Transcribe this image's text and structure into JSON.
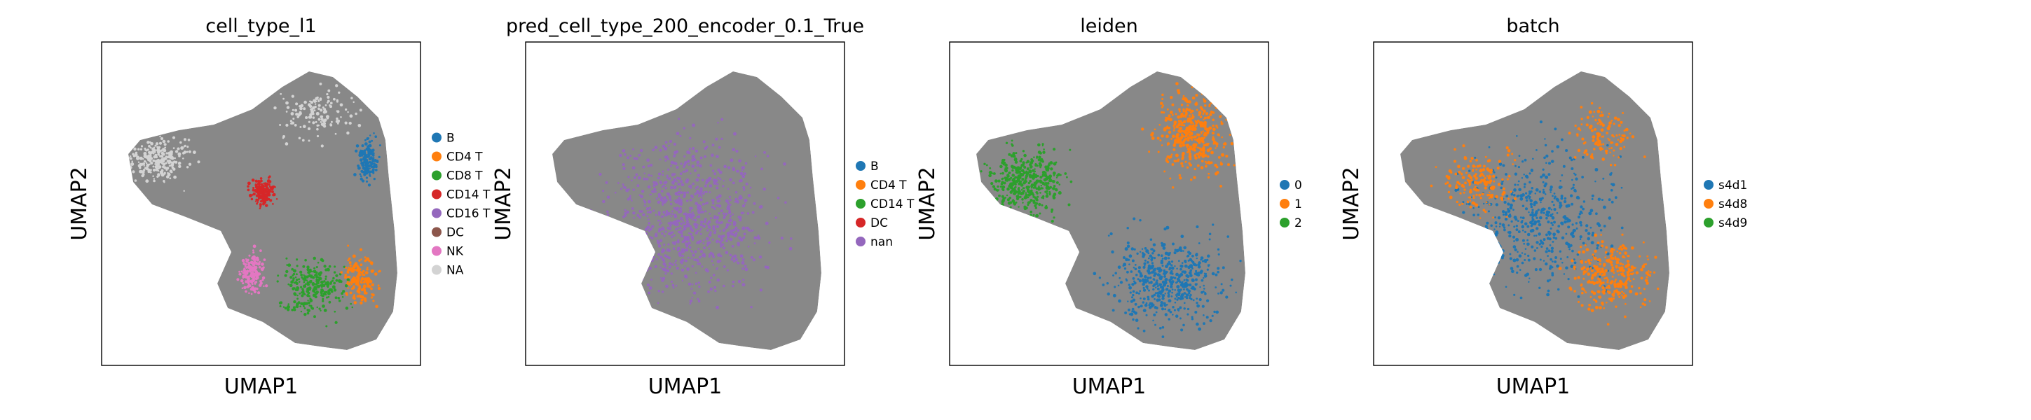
{
  "figure": {
    "background": "#ffffff",
    "edge_color": "#888888",
    "panels": 4
  },
  "chart_data": [
    {
      "type": "scatter",
      "title": "cell_type_l1",
      "xlabel": "UMAP1",
      "ylabel": "UMAP2",
      "grid": false,
      "legend_position": "right",
      "legend": [
        {
          "label": "B",
          "color": "#1f77b4"
        },
        {
          "label": "CD4 T",
          "color": "#ff7f0e"
        },
        {
          "label": "CD8 T",
          "color": "#2ca02c"
        },
        {
          "label": "CD14 T",
          "color": "#d62728"
        },
        {
          "label": "CD16 T",
          "color": "#9467bd"
        },
        {
          "label": "DC",
          "color": "#8c564b"
        },
        {
          "label": "NK",
          "color": "#e377c2"
        },
        {
          "label": "NA",
          "color": "#d3d3d3"
        }
      ]
    },
    {
      "type": "scatter",
      "title": "pred_cell_type_200_encoder_0.1_True",
      "xlabel": "UMAP1",
      "ylabel": "UMAP2",
      "grid": false,
      "legend_position": "right",
      "legend": [
        {
          "label": "B",
          "color": "#1f77b4"
        },
        {
          "label": "CD4 T",
          "color": "#ff7f0e"
        },
        {
          "label": "CD14 T",
          "color": "#2ca02c"
        },
        {
          "label": "DC",
          "color": "#d62728"
        },
        {
          "label": "nan",
          "color": "#9467bd"
        }
      ]
    },
    {
      "type": "scatter",
      "title": "leiden",
      "xlabel": "UMAP1",
      "ylabel": "UMAP2",
      "grid": false,
      "legend_position": "right",
      "legend": [
        {
          "label": "0",
          "color": "#1f77b4"
        },
        {
          "label": "1",
          "color": "#ff7f0e"
        },
        {
          "label": "2",
          "color": "#2ca02c"
        }
      ]
    },
    {
      "type": "scatter",
      "title": "batch",
      "xlabel": "UMAP1",
      "ylabel": "UMAP2",
      "grid": false,
      "legend_position": "right",
      "legend": [
        {
          "label": "s4d1",
          "color": "#1f77b4"
        },
        {
          "label": "s4d8",
          "color": "#ff7f0e"
        },
        {
          "label": "s4d9",
          "color": "#2ca02c"
        }
      ]
    }
  ]
}
